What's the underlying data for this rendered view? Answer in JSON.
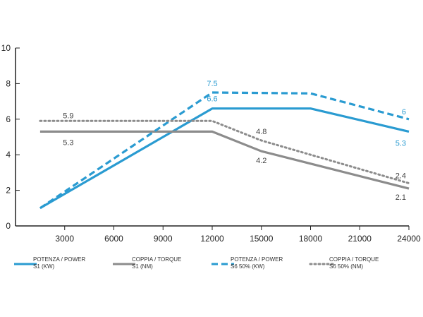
{
  "chart_data": {
    "type": "line",
    "title": "",
    "xlabel": "",
    "ylabel": "",
    "x_ticks": [
      3000,
      6000,
      9000,
      12000,
      15000,
      18000,
      21000,
      24000
    ],
    "y_ticks": [
      0,
      2,
      4,
      6,
      8,
      10
    ],
    "xlim": [
      0,
      24000
    ],
    "ylim": [
      0,
      10
    ],
    "grid": false,
    "legend_position": "bottom",
    "series": [
      {
        "name_line1": "POTENZA / POWER",
        "name_line2": "S1 (KW)",
        "color": "#2a9bd1",
        "style": "solid",
        "x": [
          1500,
          12000,
          18000,
          24000
        ],
        "y": [
          1.0,
          6.6,
          6.6,
          5.3
        ],
        "labels": [
          {
            "x": 12000,
            "y": 6.6,
            "text": "6.6"
          },
          {
            "x": 24000,
            "y": 5.3,
            "text": "5.3"
          }
        ]
      },
      {
        "name_line1": "COPPIA / TORQUE",
        "name_line2": "S1 (NM)",
        "color": "#8c8c8c",
        "style": "solid",
        "x": [
          1500,
          12000,
          15000,
          18000,
          24000
        ],
        "y": [
          5.3,
          5.3,
          4.2,
          3.5,
          2.1
        ],
        "labels": [
          {
            "x": 1500,
            "y": 5.3,
            "text": "5.3"
          },
          {
            "x": 15000,
            "y": 4.2,
            "text": "4.2"
          },
          {
            "x": 24000,
            "y": 2.1,
            "text": "2.1"
          }
        ]
      },
      {
        "name_line1": "POTENZA / POWER",
        "name_line2": "S6 50% (KW)",
        "color": "#2a9bd1",
        "style": "dashed",
        "x": [
          1500,
          12000,
          18000,
          24000
        ],
        "y": [
          1.0,
          7.5,
          7.45,
          6.0
        ],
        "labels": [
          {
            "x": 12000,
            "y": 7.5,
            "text": "7.5"
          },
          {
            "x": 24000,
            "y": 6.0,
            "text": "6"
          }
        ]
      },
      {
        "name_line1": "COPPIA / TORQUE",
        "name_line2": "S6 50% (NM)",
        "color": "#8c8c8c",
        "style": "dotted",
        "x": [
          1500,
          12000,
          15000,
          24000
        ],
        "y": [
          5.9,
          5.9,
          4.8,
          2.4
        ],
        "labels": [
          {
            "x": 1500,
            "y": 5.9,
            "text": "5.9"
          },
          {
            "x": 15000,
            "y": 4.8,
            "text": "4.8"
          },
          {
            "x": 24000,
            "y": 2.4,
            "text": "2.4"
          }
        ]
      }
    ]
  }
}
